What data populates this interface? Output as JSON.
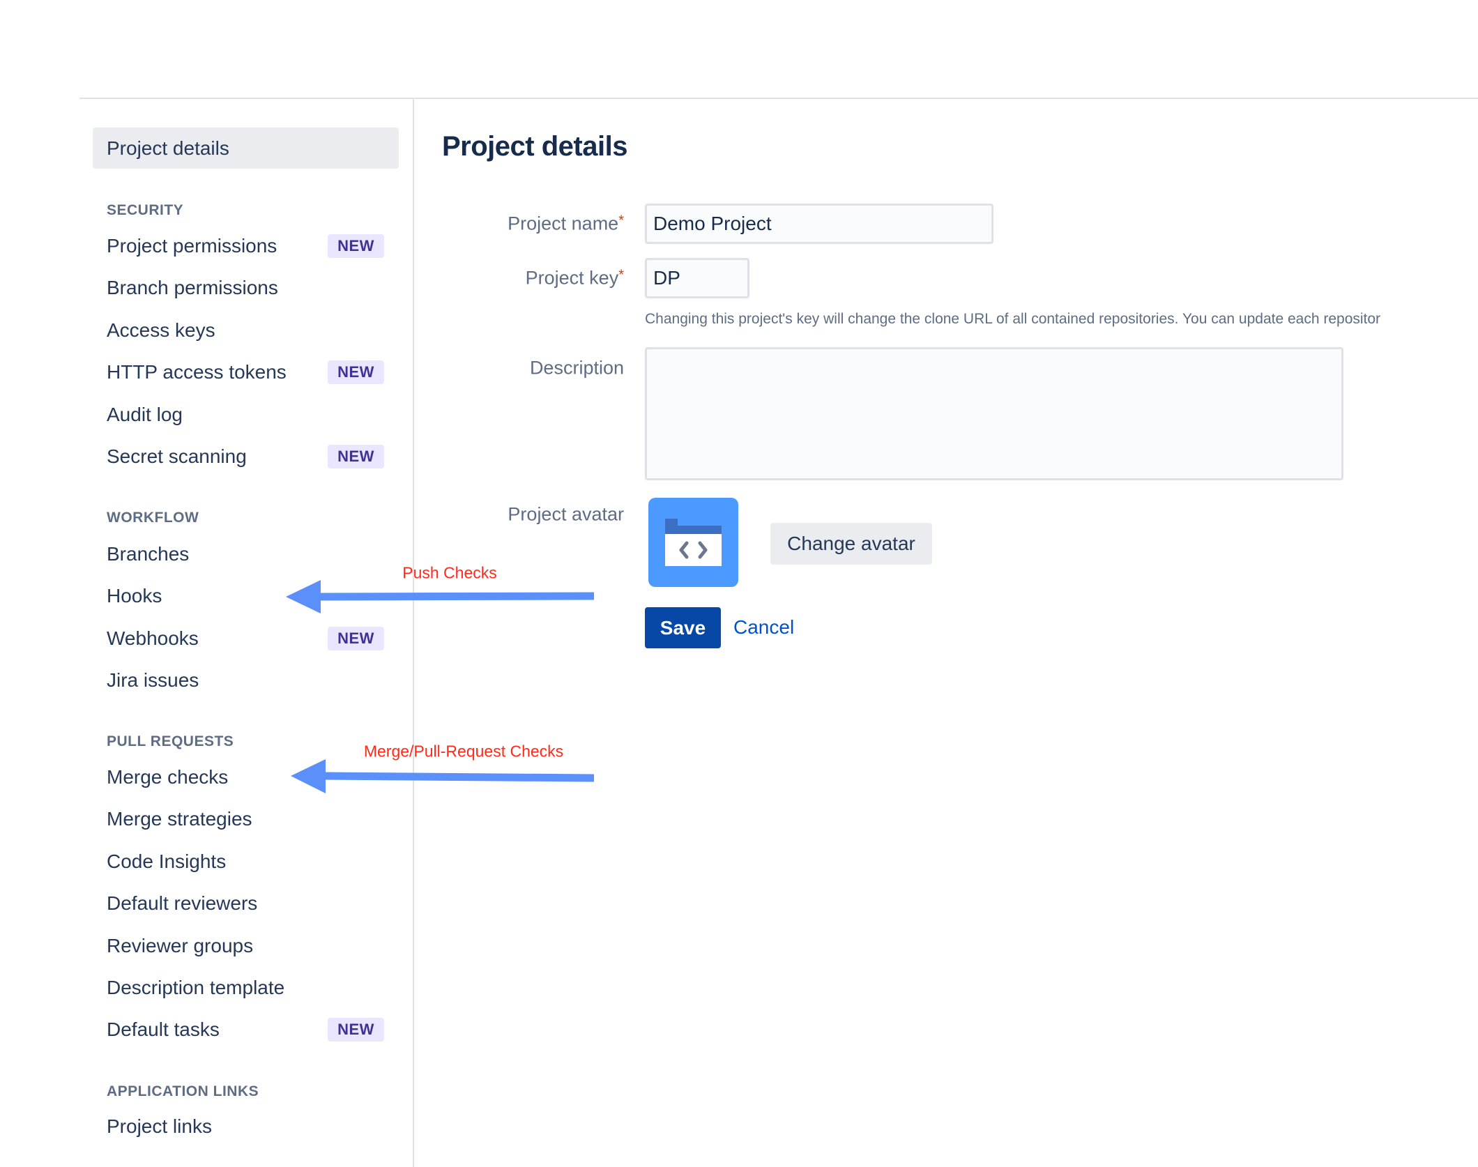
{
  "sidebar": {
    "selected": "Project details",
    "sections": [
      {
        "title": "SECURITY",
        "items": [
          {
            "label": "Project permissions",
            "badge": "NEW"
          },
          {
            "label": "Branch permissions"
          },
          {
            "label": "Access keys"
          },
          {
            "label": "HTTP access tokens",
            "badge": "NEW"
          },
          {
            "label": "Audit log"
          },
          {
            "label": "Secret scanning",
            "badge": "NEW"
          }
        ]
      },
      {
        "title": "WORKFLOW",
        "items": [
          {
            "label": "Branches"
          },
          {
            "label": "Hooks"
          },
          {
            "label": "Webhooks",
            "badge": "NEW"
          },
          {
            "label": "Jira issues"
          }
        ]
      },
      {
        "title": "PULL REQUESTS",
        "items": [
          {
            "label": "Merge checks"
          },
          {
            "label": "Merge strategies"
          },
          {
            "label": "Code Insights"
          },
          {
            "label": "Default reviewers"
          },
          {
            "label": "Reviewer groups"
          },
          {
            "label": "Description template"
          },
          {
            "label": "Default tasks",
            "badge": "NEW"
          }
        ]
      },
      {
        "title": "APPLICATION LINKS",
        "items": [
          {
            "label": "Project links"
          }
        ]
      }
    ]
  },
  "main": {
    "title": "Project details",
    "form": {
      "name_label": "Project name",
      "name_value": "Demo Project",
      "key_label": "Project key",
      "key_value": "DP",
      "required_mark": "*",
      "key_help": "Changing this project's key will change the clone URL of all contained repositories. You can update each repositor",
      "description_label": "Description",
      "description_value": "",
      "avatar_label": "Project avatar",
      "avatar_icon": "folder-code-icon",
      "change_avatar": "Change avatar",
      "save": "Save",
      "cancel": "Cancel"
    }
  },
  "annotations": {
    "push": "Push Checks",
    "merge": "Merge/Pull-Request Checks",
    "arrow_color": "#5b8ff9"
  },
  "colors": {
    "primary": "#0747a6",
    "link": "#0052cc",
    "badge_bg": "#eae6ff",
    "badge_text": "#403294",
    "avatar": "#4c9aff"
  }
}
